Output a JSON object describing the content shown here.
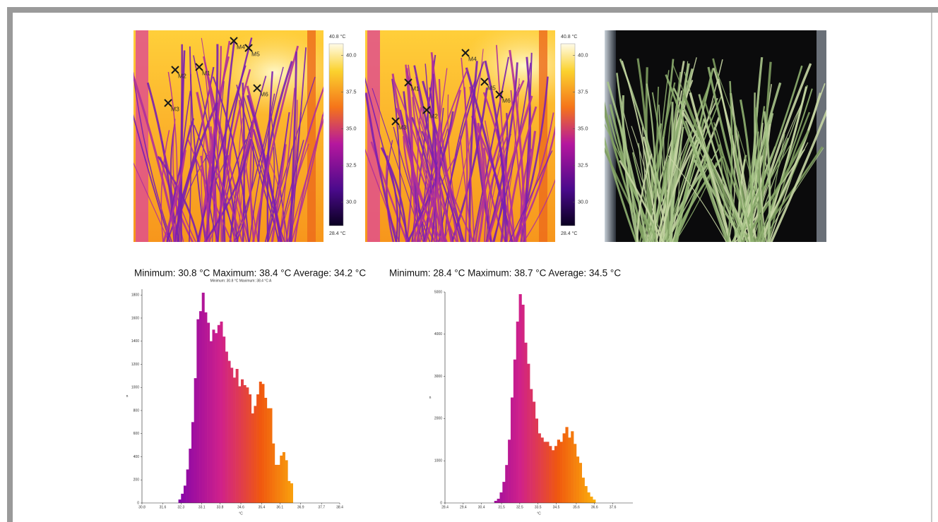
{
  "thermal_images": [
    {
      "colorbar_max": {
        "value": 40.8,
        "label": "40.8 °C"
      },
      "colorbar_min": {
        "value": 28.4,
        "label": "28.4 °C"
      },
      "colorbar_ticks": [
        {
          "value": 40.0,
          "label": "40.0"
        },
        {
          "value": 37.5,
          "label": "37.5"
        },
        {
          "value": 35.0,
          "label": "35.0"
        },
        {
          "value": 32.5,
          "label": "32.5"
        },
        {
          "value": 30.0,
          "label": "30.0"
        }
      ],
      "markers": [
        "M1",
        "M2",
        "M3",
        "M4",
        "M5",
        "M6"
      ]
    },
    {
      "colorbar_max": {
        "value": 40.8,
        "label": "40.8 °C"
      },
      "colorbar_min": {
        "value": 28.4,
        "label": "28.4 °C"
      },
      "colorbar_ticks": [
        {
          "value": 40.0,
          "label": "40.0"
        },
        {
          "value": 37.5,
          "label": "37.5"
        },
        {
          "value": 35.0,
          "label": "35.0"
        },
        {
          "value": 32.5,
          "label": "32.5"
        },
        {
          "value": 30.0,
          "label": "30.0"
        }
      ],
      "markers": [
        "M1",
        "M2",
        "M3",
        "M4",
        "M5",
        "M6"
      ]
    }
  ],
  "captions": [
    "Minimum: 30.8 °C Maximum: 38.4 °C Average: 34.2 °C",
    "Minimum: 28.4 °C Maximum: 38.7 °C Average: 34.5 °C"
  ],
  "chart_data": [
    {
      "type": "histogram",
      "subtitle": "Minimum: 30.8 °C Maximum: 38.4 °C A",
      "xlabel": "°C",
      "ylabel": "n",
      "bins": [
        32.2,
        32.3,
        32.4,
        32.5,
        32.6,
        32.7,
        32.8,
        32.9,
        33.0,
        33.1,
        33.2,
        33.3,
        33.4,
        33.5,
        33.6,
        33.7,
        33.8,
        33.9,
        34.0,
        34.1,
        34.2,
        34.3,
        34.4,
        34.5,
        34.6,
        34.7,
        34.8,
        34.9,
        35.0,
        35.1,
        35.2,
        35.3,
        35.4,
        35.5,
        35.6,
        35.7,
        35.8,
        35.9,
        36.0,
        36.1,
        36.2,
        36.3,
        36.4,
        36.5,
        36.6
      ],
      "values": [
        30,
        80,
        150,
        290,
        470,
        700,
        1080,
        1590,
        1660,
        1820,
        1650,
        1560,
        1400,
        1500,
        1470,
        1540,
        1570,
        1440,
        1310,
        1230,
        1170,
        1085,
        1160,
        1010,
        1070,
        1020,
        1000,
        940,
        775,
        840,
        940,
        1050,
        1030,
        910,
        820,
        820,
        515,
        330,
        330,
        410,
        440,
        370,
        190,
        170
      ],
      "xlim": [
        30.8,
        38.4
      ],
      "xticks": [
        30.8,
        31.6,
        32.3,
        33.1,
        33.8,
        34.6,
        35.4,
        36.1,
        36.9,
        37.7,
        38.4
      ],
      "ylim": [
        0,
        1850
      ],
      "yticks": [
        0,
        200,
        400,
        600,
        800,
        1000,
        1200,
        1400,
        1600,
        1800
      ],
      "colormap": [
        "#1a0a8c",
        "#8a07a8",
        "#d0218a",
        "#f0580f",
        "#fbb10c",
        "#f8e81a"
      ]
    },
    {
      "type": "histogram",
      "xlabel": "°C",
      "ylabel": "n",
      "bins": [
        31.1,
        31.25,
        31.4,
        31.55,
        31.7,
        31.85,
        32.0,
        32.15,
        32.3,
        32.45,
        32.6,
        32.75,
        32.9,
        33.05,
        33.2,
        33.35,
        33.5,
        33.65,
        33.8,
        33.95,
        34.1,
        34.25,
        34.4,
        34.55,
        34.7,
        34.85,
        35.0,
        35.15,
        35.3,
        35.45,
        35.6,
        35.75,
        35.9,
        36.05,
        36.2,
        36.35,
        36.5,
        36.65
      ],
      "values": [
        50,
        100,
        250,
        500,
        900,
        1500,
        2500,
        3400,
        4300,
        4950,
        4700,
        3800,
        3300,
        2700,
        2400,
        2000,
        1650,
        1550,
        1450,
        1450,
        1350,
        1250,
        1350,
        1500,
        1450,
        1650,
        1800,
        1550,
        1700,
        1400,
        1100,
        950,
        600,
        400,
        250,
        150,
        80
      ],
      "xlim": [
        28.4,
        38.7
      ],
      "xticks": [
        28.4,
        29.4,
        30.4,
        31.5,
        32.5,
        33.5,
        34.5,
        35.6,
        36.6,
        37.6
      ],
      "ylim": [
        0,
        5000
      ],
      "yticks": [
        0,
        1000,
        2000,
        3000,
        4000,
        5000
      ],
      "colormap": [
        "#1a0a8c",
        "#8a07a8",
        "#d0218a",
        "#f0580f",
        "#fbb10c",
        "#f8e81a"
      ]
    }
  ]
}
